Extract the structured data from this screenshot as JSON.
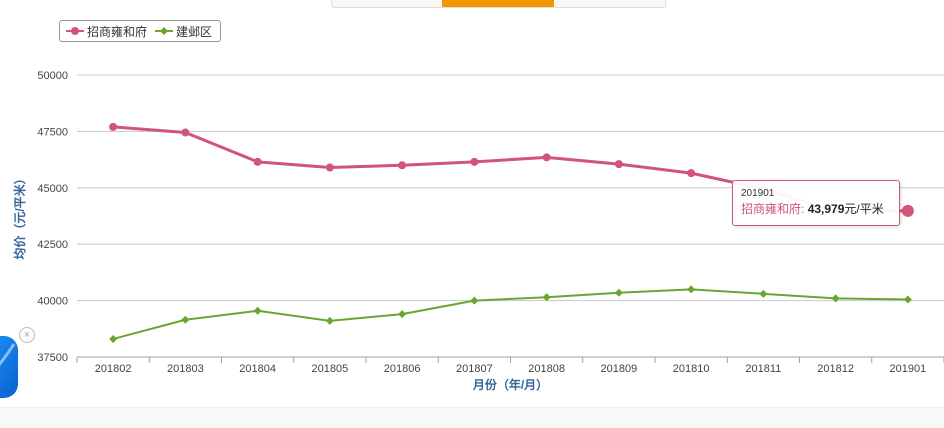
{
  "chart_data": {
    "type": "line",
    "xlabel": "月份（年/月）",
    "ylabel": "均价（元/平米）",
    "ylim": [
      37500,
      50000
    ],
    "yticks": [
      37500,
      40000,
      42500,
      45000,
      47500,
      50000
    ],
    "grid": true,
    "legend_position": "top-left",
    "categories": [
      "201802",
      "201803",
      "201804",
      "201805",
      "201806",
      "201807",
      "201808",
      "201809",
      "201810",
      "201811",
      "201812",
      "201901"
    ],
    "series": [
      {
        "name": "招商雍和府",
        "color": "#d05577",
        "marker": "circle",
        "values": [
          47700,
          47450,
          46150,
          45900,
          46000,
          46150,
          46350,
          46050,
          45650,
          44950,
          43950,
          43979
        ]
      },
      {
        "name": "建邺区",
        "color": "#6aa532",
        "marker": "diamond",
        "values": [
          38300,
          39150,
          39550,
          39100,
          39400,
          40000,
          40150,
          40350,
          40500,
          40300,
          40100,
          40050
        ]
      }
    ],
    "tooltip": {
      "x": "201901",
      "series_name": "招商雍和府",
      "value": "43,979",
      "unit": "元/平米"
    }
  },
  "icons": {
    "close": "×",
    "side_widget": "blue-app-icon",
    "close_icon": "close-circle-icon"
  }
}
